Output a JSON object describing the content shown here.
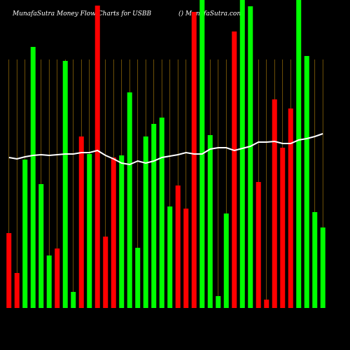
{
  "chart_data": {
    "type": "bar",
    "title": "MunafaSutra  Money Flow  Charts for USBB",
    "subtitle": "() MunafaSutra.com",
    "categories": [
      null,
      null,
      null,
      null,
      null,
      null,
      null,
      null,
      null,
      null,
      null,
      null,
      null,
      null,
      null,
      null,
      null,
      null,
      null,
      null,
      null,
      null,
      null,
      null,
      null,
      null,
      null,
      null,
      null,
      null,
      null,
      null,
      null,
      null,
      null,
      null,
      null,
      null,
      null,
      null
    ],
    "ylim": [
      0,
      440
    ],
    "grid": true,
    "grid_color": "#b8860b",
    "background": "#000000",
    "series": [
      {
        "color": "#ff0000/#00ff00",
        "bar_colors": [
          "#ff0000",
          "#ff0000",
          "#00ff00",
          "#00ff00",
          "#00ff00",
          "#00ff00",
          "#ff0000",
          "#00ff00",
          "#00ff00",
          "#ff0000",
          "#00ff00",
          "#ff0000",
          "#ff0000",
          "#ff0000",
          "#00ff00",
          "#00ff00",
          "#00ff00",
          "#00ff00",
          "#00ff00",
          "#00ff00",
          "#00ff00",
          "#ff0000",
          "#ff0000",
          "#ff0000",
          "#00ff00",
          "#00ff00",
          "#00ff00",
          "#00ff00",
          "#ff0000",
          "#00ff00",
          "#00ff00",
          "#ff0000",
          "#ff0000",
          "#ff0000",
          "#ff0000",
          "#ff0000",
          "#00ff00",
          "#00ff00",
          "#00ff00",
          "#00ff00"
        ],
        "values": [
          107,
          50,
          212,
          373,
          177,
          75,
          85,
          353,
          23,
          245,
          220,
          432,
          102,
          215,
          218,
          308,
          86,
          245,
          263,
          272,
          145,
          175,
          142,
          423,
          440,
          247,
          17,
          135,
          395,
          440,
          431,
          180,
          12,
          298,
          229,
          285,
          440,
          360,
          137,
          115
        ]
      },
      {
        "type": "line",
        "color": "#ffffff",
        "values": [
          215,
          213,
          216,
          218,
          219,
          218,
          219,
          220,
          220,
          222,
          222,
          225,
          218,
          213,
          207,
          205,
          210,
          207,
          210,
          215,
          217,
          219,
          222,
          220,
          220,
          227,
          229,
          229,
          225,
          228,
          231,
          237,
          237,
          238,
          235,
          235,
          240,
          242,
          245,
          249
        ]
      }
    ]
  }
}
